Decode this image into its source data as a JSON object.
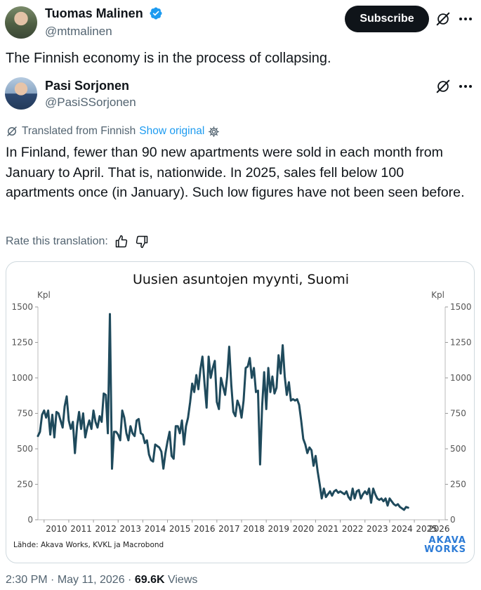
{
  "author": {
    "name": "Tuomas Malinen",
    "handle": "@mtmalinen",
    "verified": true,
    "subscribe_label": "Subscribe"
  },
  "tweet": {
    "text": "The Finnish economy is in the process of collapsing."
  },
  "quoted": {
    "name": "Pasi Sorjonen",
    "handle": "@PasiSSorjonen",
    "translated_label": "Translated from Finnish",
    "show_original_label": "Show original",
    "text": "In Finland, fewer than 90 new apartments were sold in each month from January to April. That is, nationwide. In 2025, sales fell below 100 apartments once (in January). Such low figures have not been seen before.",
    "rate_label": "Rate this translation:"
  },
  "chart_data": {
    "type": "line",
    "title": "Uusien asuntojen myynti, Suomi",
    "ylabel_left": "Kpl",
    "ylabel_right": "Kpl",
    "ylim": [
      0,
      1500
    ],
    "yticks": [
      0,
      250,
      500,
      750,
      1000,
      1250,
      1500
    ],
    "xlim": [
      2009.75,
      2026.25
    ],
    "xticks": [
      "2010",
      "2011",
      "2012",
      "2013",
      "2014",
      "2015",
      "2016",
      "2017",
      "2018",
      "2019",
      "2020",
      "2021",
      "2022",
      "2023",
      "2024",
      "2025",
      "2026"
    ],
    "source": "Lähde: Akava Works, KVKL ja Macrobond",
    "logo_line1": "AKAVA",
    "logo_line2": "WORKS",
    "line_color": "#1f4a5c",
    "series": [
      {
        "x_start": "2009-10",
        "values": [
          590,
          620,
          740,
          770,
          720,
          770,
          600,
          740,
          580,
          760,
          750,
          700,
          650,
          800,
          870,
          700,
          640,
          690,
          470,
          660,
          760,
          640,
          750,
          580,
          650,
          700,
          640,
          770,
          690,
          650,
          730,
          690,
          890,
          880,
          610,
          1450,
          360,
          620,
          620,
          600,
          560,
          770,
          720,
          610,
          560,
          660,
          610,
          590,
          700,
          710,
          610,
          600,
          540,
          560,
          460,
          420,
          410,
          530,
          520,
          510,
          480,
          360,
          470,
          550,
          620,
          450,
          430,
          660,
          660,
          610,
          700,
          530,
          660,
          720,
          830,
          960,
          900,
          1020,
          920,
          1060,
          1150,
          960,
          790,
          1150,
          1000,
          1070,
          1120,
          830,
          780,
          1000,
          940,
          880,
          1010,
          1220,
          950,
          760,
          730,
          840,
          800,
          720,
          840,
          1070,
          1080,
          1140,
          1000,
          1070,
          900,
          910,
          390,
          800,
          1040,
          780,
          1070,
          900,
          1010,
          890,
          930,
          1160,
          1030,
          1230,
          1010,
          880,
          970,
          840,
          850,
          840,
          850,
          810,
          700,
          570,
          530,
          470,
          510,
          490,
          380,
          450,
          340,
          250,
          150,
          220,
          160,
          180,
          200,
          170,
          200,
          210,
          190,
          200,
          190,
          180,
          200,
          160,
          140,
          220,
          150,
          200,
          210,
          150,
          180,
          200,
          180,
          220,
          120,
          220,
          180,
          150,
          140,
          150,
          130,
          150,
          100,
          150,
          130,
          110,
          100,
          110,
          90,
          80,
          70,
          90,
          85
        ]
      }
    ]
  },
  "footer": {
    "time": "2:30 PM",
    "date": "May 11, 2026",
    "views_count": "69.6K",
    "views_label": "Views"
  }
}
